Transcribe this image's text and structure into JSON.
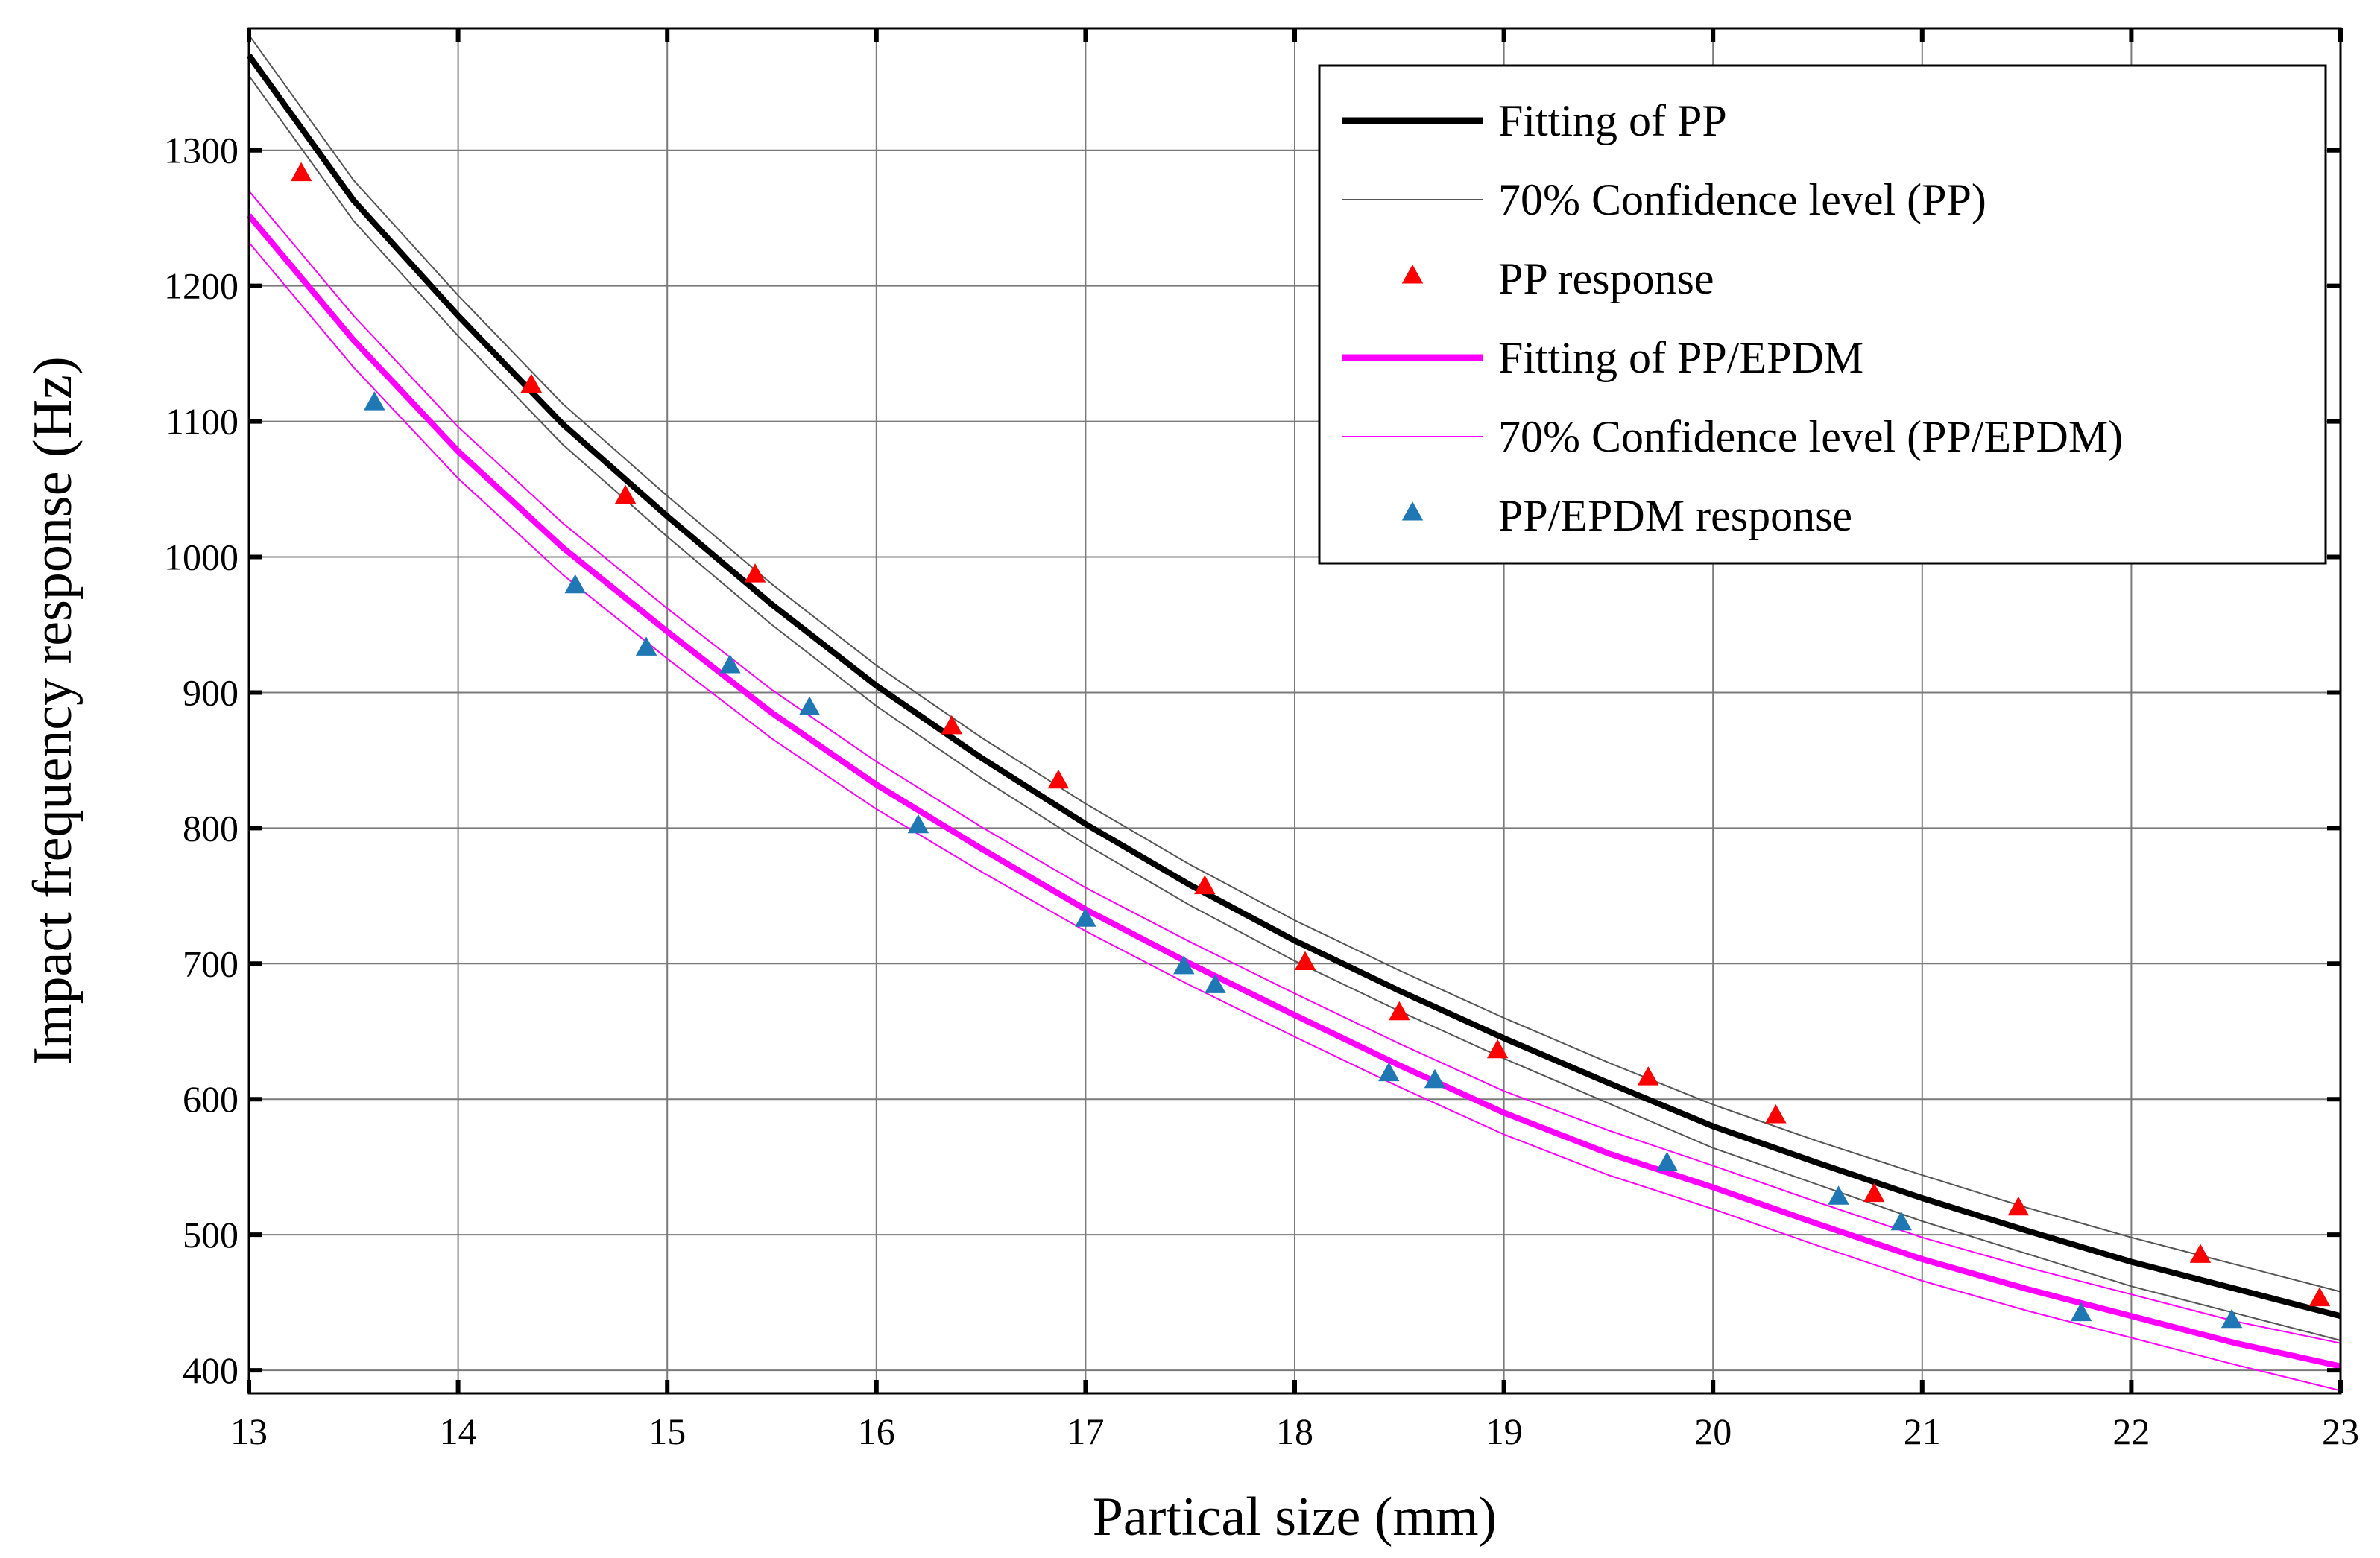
{
  "chart_data": {
    "type": "line",
    "title": "",
    "xlabel": "Partical size (mm)",
    "ylabel": "Impact frequency response (Hz)",
    "xlim": [
      13,
      23
    ],
    "ylim": [
      383,
      1390
    ],
    "xticks": [
      13,
      14,
      15,
      16,
      17,
      18,
      19,
      20,
      21,
      22,
      23
    ],
    "yticks": [
      400,
      500,
      600,
      700,
      800,
      900,
      1000,
      1100,
      1200,
      1300
    ],
    "grid": true,
    "legend_position": "top-right",
    "legend": [
      "Fitting of PP",
      "70% Confidence level (PP)",
      "PP response",
      "Fitting of PP/EPDM",
      "70% Confidence level (PP/EPDM)",
      "PP/EPDM response"
    ],
    "series": [
      {
        "name": "Fitting of PP",
        "kind": "line",
        "color": "#000000",
        "x": [
          13,
          13.5,
          14,
          14.5,
          15,
          15.5,
          16,
          16.5,
          17,
          17.5,
          18,
          18.5,
          19,
          19.5,
          20,
          20.5,
          21,
          21.5,
          22,
          22.5,
          23
        ],
        "y": [
          1370,
          1263,
          1178,
          1098,
          1030,
          965,
          905,
          852,
          803,
          758,
          717,
          680,
          645,
          612,
          580,
          553,
          527,
          503,
          480,
          460,
          440
        ]
      },
      {
        "name": "70% Confidence level (PP) upper",
        "kind": "band",
        "color": "#555555",
        "x": [
          13,
          13.5,
          14,
          14.5,
          15,
          15.5,
          16,
          16.5,
          17,
          17.5,
          18,
          18.5,
          19,
          19.5,
          20,
          20.5,
          21,
          21.5,
          22,
          22.5,
          23
        ],
        "y": [
          1385,
          1278,
          1193,
          1113,
          1045,
          980,
          920,
          867,
          818,
          773,
          732,
          695,
          660,
          627,
          596,
          569,
          544,
          520,
          498,
          478,
          458
        ]
      },
      {
        "name": "70% Confidence level (PP) lower",
        "kind": "band",
        "color": "#555555",
        "x": [
          13,
          13.5,
          14,
          14.5,
          15,
          15.5,
          16,
          16.5,
          17,
          17.5,
          18,
          18.5,
          19,
          19.5,
          20,
          20.5,
          21,
          21.5,
          22,
          22.5,
          23
        ],
        "y": [
          1355,
          1248,
          1163,
          1083,
          1015,
          950,
          890,
          837,
          788,
          743,
          702,
          665,
          630,
          597,
          564,
          537,
          510,
          486,
          462,
          442,
          422
        ]
      },
      {
        "name": "PP response",
        "kind": "scatter",
        "color": "#ff0000",
        "x": [
          13.25,
          14.35,
          14.8,
          15.42,
          16.36,
          16.87,
          17.57,
          18.05,
          18.5,
          18.97,
          19.69,
          20.3,
          20.77,
          21.46,
          22.33,
          22.9
        ],
        "y": [
          1283,
          1127,
          1045,
          987,
          875,
          835,
          757,
          701,
          664,
          636,
          616,
          588,
          530,
          520,
          485,
          453
        ]
      },
      {
        "name": "Fitting of PP/EPDM",
        "kind": "line",
        "color": "#ff00ff",
        "x": [
          13,
          13.5,
          14,
          14.5,
          15,
          15.5,
          16,
          16.5,
          17,
          17.5,
          18,
          18.5,
          19,
          19.5,
          20,
          20.5,
          21,
          21.5,
          22,
          22.5,
          23
        ],
        "y": [
          1252,
          1160,
          1078,
          1007,
          945,
          885,
          832,
          785,
          740,
          700,
          662,
          625,
          590,
          560,
          535,
          508,
          482,
          460,
          440,
          420,
          403
        ]
      },
      {
        "name": "70% Confidence level (PP/EPDM) upper",
        "kind": "band",
        "color": "#ff00ff",
        "x": [
          13,
          13.5,
          14,
          14.5,
          15,
          15.5,
          16,
          16.5,
          17,
          17.5,
          18,
          18.5,
          19,
          19.5,
          20,
          20.5,
          21,
          21.5,
          22,
          22.5,
          23
        ],
        "y": [
          1270,
          1178,
          1096,
          1025,
          962,
          902,
          849,
          801,
          756,
          716,
          678,
          641,
          606,
          577,
          551,
          524,
          498,
          476,
          456,
          436,
          420
        ]
      },
      {
        "name": "70% Confidence level (PP/EPDM) lower",
        "kind": "band",
        "color": "#ff00ff",
        "x": [
          13,
          13.5,
          14,
          14.5,
          15,
          15.5,
          16,
          16.5,
          17,
          17.5,
          18,
          18.5,
          19,
          19.5,
          20,
          20.5,
          21,
          21.5,
          22,
          22.5,
          23
        ],
        "y": [
          1232,
          1140,
          1058,
          987,
          925,
          866,
          814,
          768,
          724,
          684,
          646,
          609,
          574,
          544,
          519,
          492,
          466,
          444,
          424,
          404,
          385
        ]
      },
      {
        "name": "PP/EPDM response",
        "kind": "scatter",
        "color": "#1f77b4",
        "x": [
          13.6,
          14.56,
          14.9,
          15.3,
          15.68,
          16.2,
          17.0,
          17.47,
          17.62,
          18.45,
          18.67,
          19.78,
          20.6,
          20.9,
          21.76,
          22.48
        ],
        "y": [
          1114,
          979,
          933,
          920,
          889,
          802,
          733,
          698,
          684,
          619,
          614,
          553,
          528,
          509,
          442,
          437
        ]
      }
    ]
  }
}
